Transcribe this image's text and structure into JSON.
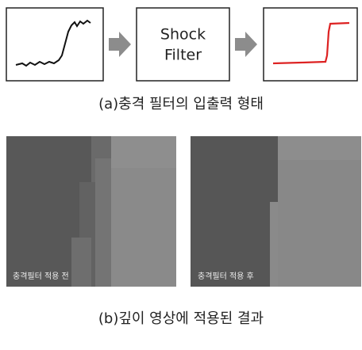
{
  "panel_a": {
    "box_lines": [
      "Shock",
      "Filter"
    ],
    "caption": "(a)충격 필터의 입출력 형태"
  },
  "panel_b": {
    "images": [
      {
        "label": "충격필터 적용 전"
      },
      {
        "label": "충격필터 적용 후"
      }
    ],
    "caption": "(b)깊이 영상에 적용된 결과"
  }
}
